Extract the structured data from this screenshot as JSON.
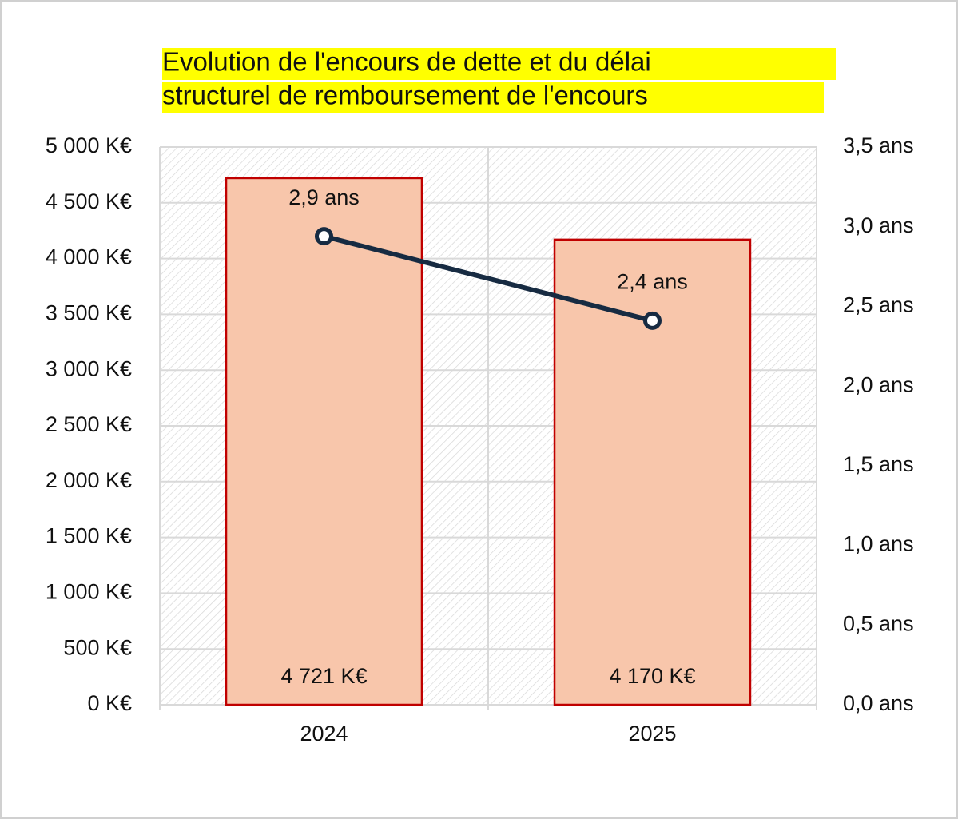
{
  "chart_data": {
    "type": "combo",
    "title": [
      "Evolution de l'encours de dette et du délai",
      "structurel de remboursement de l'encours"
    ],
    "categories": [
      "2024",
      "2025"
    ],
    "series": [
      {
        "type": "bar",
        "color": "#f8c6ab",
        "edge_color": "#c00000",
        "values": [
          4721,
          4170
        ],
        "value_labels": [
          "4 721 K€",
          "4 170 K€"
        ]
      },
      {
        "type": "line",
        "axis": "y2",
        "color": "#172b42",
        "values": [
          2.94,
          2.41
        ],
        "value_labels": [
          "2,9 ans",
          "2,4 ans"
        ]
      }
    ],
    "ylim": [
      0,
      5000
    ],
    "yticks": [
      {
        "value": 0,
        "label": "0 K€"
      },
      {
        "value": 500,
        "label": "500 K€"
      },
      {
        "value": 1000,
        "label": "1 000 K€"
      },
      {
        "value": 1500,
        "label": "1 500 K€"
      },
      {
        "value": 2000,
        "label": "2 000 K€"
      },
      {
        "value": 2500,
        "label": "2 500 K€"
      },
      {
        "value": 3000,
        "label": "3 000 K€"
      },
      {
        "value": 3500,
        "label": "3 500 K€"
      },
      {
        "value": 4000,
        "label": "4 000 K€"
      },
      {
        "value": 4500,
        "label": "4 500 K€"
      },
      {
        "value": 5000,
        "label": "5 000 K€"
      }
    ],
    "y2lim": [
      0,
      3.5
    ],
    "y2ticks": [
      {
        "value": 0,
        "label": "0,0 ans"
      },
      {
        "value": 0.5,
        "label": "0,5 ans"
      },
      {
        "value": 1,
        "label": "1,0 ans"
      },
      {
        "value": 1.5,
        "label": "1,5 ans"
      },
      {
        "value": 2,
        "label": "2,0 ans"
      },
      {
        "value": 2.5,
        "label": "2,5 ans"
      },
      {
        "value": 3,
        "label": "3,0 ans"
      },
      {
        "value": 3.5,
        "label": "3,5 ans"
      }
    ],
    "grid": true
  }
}
